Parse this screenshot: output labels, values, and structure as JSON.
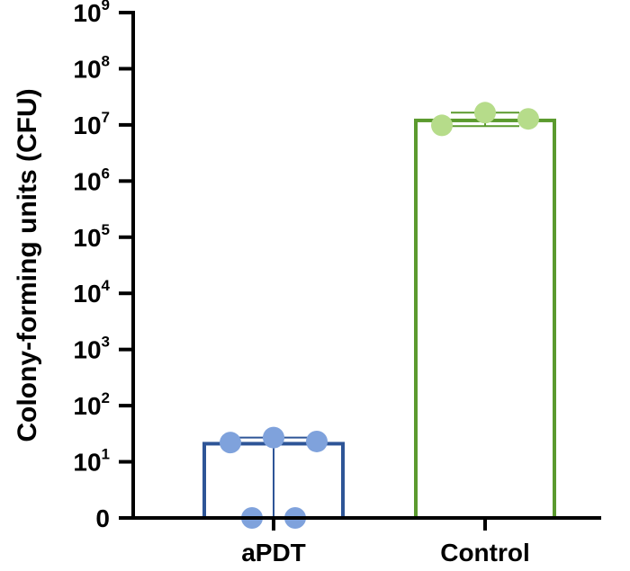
{
  "chart_data": {
    "type": "bar",
    "title": "",
    "xlabel": "",
    "ylabel": "Colony-forming units (CFU)",
    "yscale": "log",
    "ylim": [
      1,
      1000000000
    ],
    "grid": false,
    "legend": "none",
    "y_ticks": [
      {
        "value": 1,
        "base": "0",
        "exp": ""
      },
      {
        "value": 10,
        "base": "10",
        "exp": "1"
      },
      {
        "value": 100,
        "base": "10",
        "exp": "2"
      },
      {
        "value": 1000,
        "base": "10",
        "exp": "3"
      },
      {
        "value": 10000,
        "base": "10",
        "exp": "4"
      },
      {
        "value": 100000,
        "base": "10",
        "exp": "5"
      },
      {
        "value": 1000000,
        "base": "10",
        "exp": "6"
      },
      {
        "value": 10000000,
        "base": "10",
        "exp": "7"
      },
      {
        "value": 100000000,
        "base": "10",
        "exp": "8"
      },
      {
        "value": 1000000000,
        "base": "10",
        "exp": "9"
      }
    ],
    "categories": [
      "aPDT",
      "Control"
    ],
    "bars": [
      {
        "category": "aPDT",
        "mean": 21,
        "error_high": 27,
        "error_low": 1,
        "color": "#2e5597",
        "point_color": "#7fa2dc",
        "points": [
          22,
          27,
          23,
          1,
          1
        ]
      },
      {
        "category": "Control",
        "mean": 12000000,
        "error_high": 16500000,
        "error_low": 9500000,
        "color": "#5b9a2e",
        "point_color": "#b6dc8a",
        "points": [
          9800000,
          16500000,
          12800000
        ]
      }
    ]
  }
}
